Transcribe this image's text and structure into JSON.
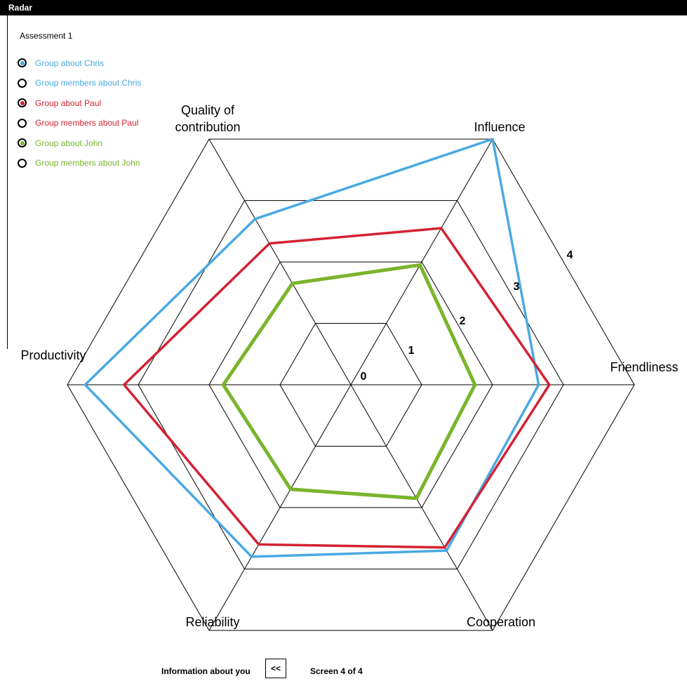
{
  "window": {
    "title": "Radar"
  },
  "assessment_label": "Assessment 1",
  "legend": [
    {
      "label": "Group about Chris",
      "color": "#4aa9e3",
      "selected": true
    },
    {
      "label": "Group members about Chris",
      "color": "#4aa9e3",
      "selected": false
    },
    {
      "label": "Group about Paul",
      "color": "#d32234",
      "selected": true
    },
    {
      "label": "Group members about Paul",
      "color": "#d32234",
      "selected": false
    },
    {
      "label": "Group about John",
      "color": "#7ab42c",
      "selected": true
    },
    {
      "label": "Group members about John",
      "color": "#7ab42c",
      "selected": false
    }
  ],
  "footer": {
    "info_label": "Information about you",
    "back_label": "<<",
    "screen_label": "Screen 4 of 4"
  },
  "chart_data": {
    "type": "radar",
    "axes": [
      "Friendliness",
      "Influence",
      "Quality of contribution",
      "Productivity",
      "Reliability",
      "Cooperation"
    ],
    "axis_display_labels": [
      "Friendliness",
      "Influence",
      "Quality of\ncontribution",
      "Productivity",
      "Reliability",
      "Cooperation"
    ],
    "range": [
      0,
      4
    ],
    "ring_ticks": [
      "0",
      "1",
      "2",
      "3",
      "4"
    ],
    "series": [
      {
        "name": "Group about Chris",
        "color": "#4aa9e3",
        "values": [
          2.65,
          4.0,
          2.7,
          3.75,
          2.8,
          2.7
        ]
      },
      {
        "name": "Group about Paul",
        "color": "#d32234",
        "values": [
          2.8,
          2.55,
          2.3,
          3.2,
          2.6,
          2.65
        ]
      },
      {
        "name": "Group about John",
        "color": "#7ab42c",
        "values": [
          1.75,
          1.95,
          1.65,
          1.8,
          1.7,
          1.85
        ]
      }
    ]
  }
}
